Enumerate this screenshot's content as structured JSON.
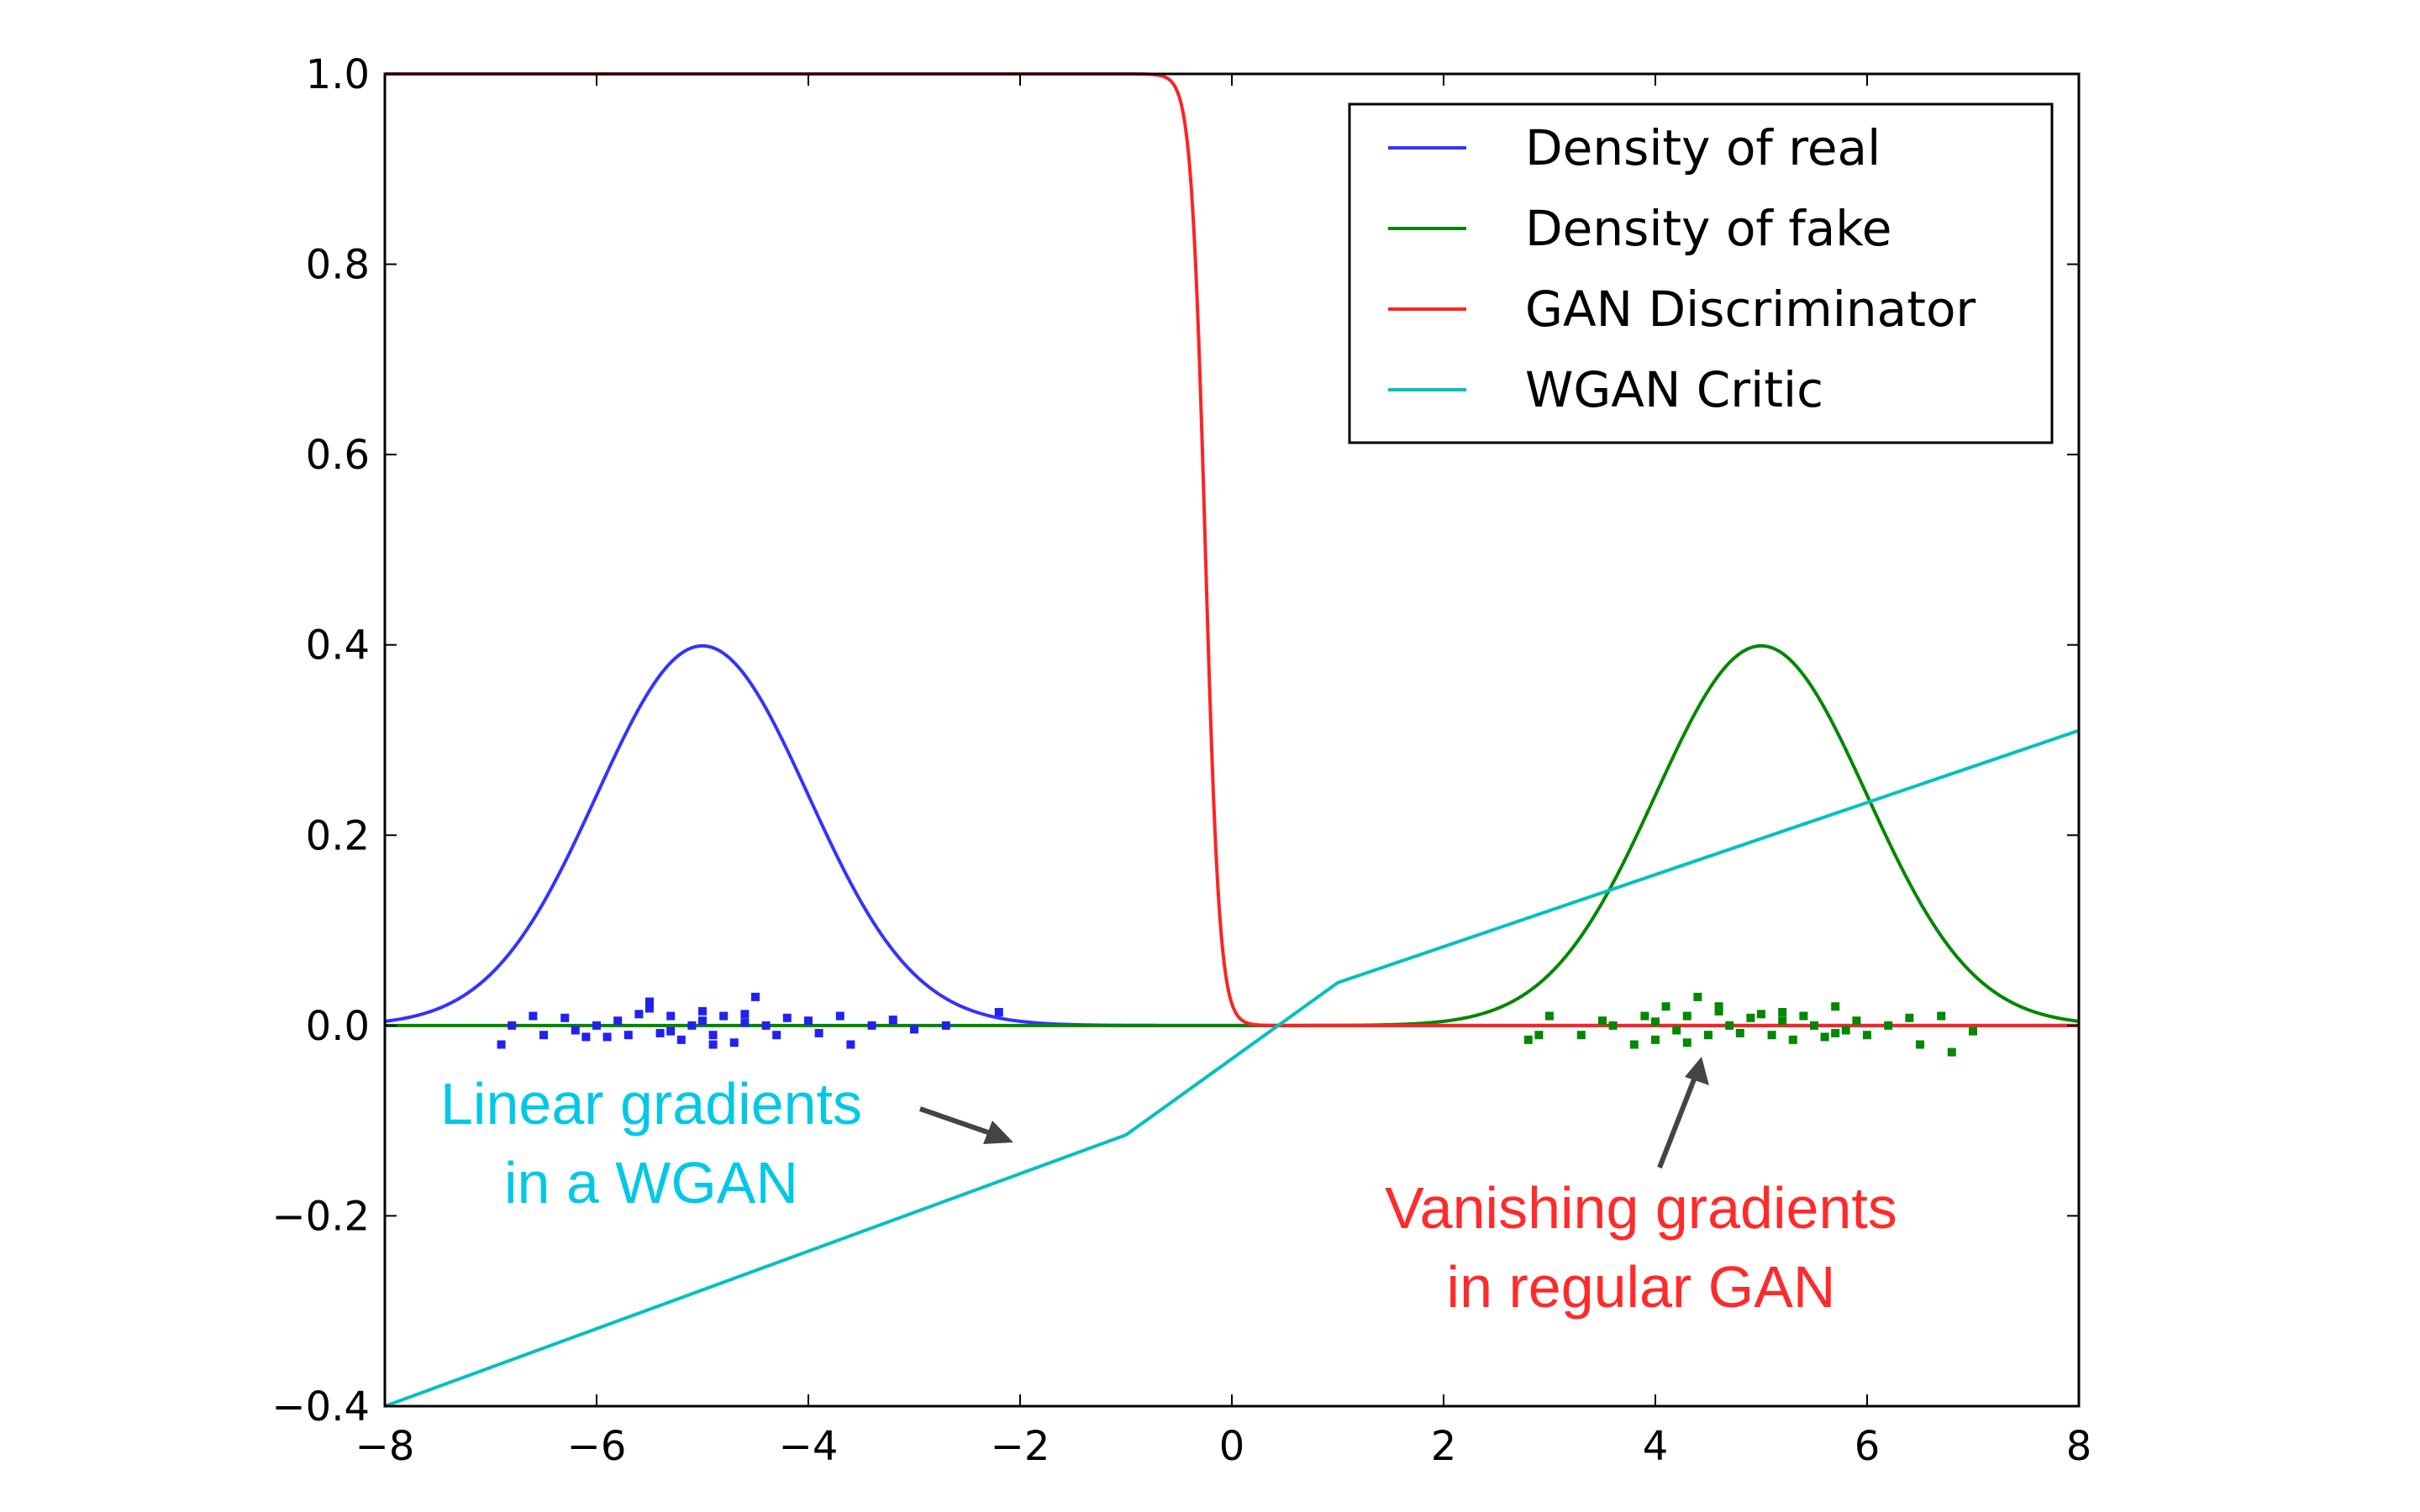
{
  "chart_data": {
    "type": "line",
    "title": "",
    "xlabel": "",
    "ylabel": "",
    "xlim": [
      -8,
      8
    ],
    "ylim": [
      -0.4,
      1.0
    ],
    "xticks": [
      "−8",
      "−6",
      "−4",
      "−2",
      "0",
      "2",
      "4",
      "6",
      "8"
    ],
    "xtick_values": [
      -8,
      -6,
      -4,
      -2,
      0,
      2,
      4,
      6,
      8
    ],
    "yticks": [
      "1.0",
      "0.8",
      "0.6",
      "0.4",
      "0.2",
      "0.0",
      "−0.2",
      "−0.4"
    ],
    "ytick_values": [
      1.0,
      0.8,
      0.6,
      0.4,
      0.2,
      0.0,
      -0.2,
      -0.4
    ],
    "grid": false,
    "legend_position": "top-right",
    "series": [
      {
        "name": "Density of real",
        "color": "#3333ff",
        "kind": "gaussian",
        "mean": -5,
        "std": 1
      },
      {
        "name": "Density of fake",
        "color": "#008800",
        "kind": "gaussian",
        "mean": 5,
        "std": 1
      },
      {
        "name": "GAN Discriminator",
        "color": "#ff2222",
        "kind": "sigmoid",
        "center": -0.25,
        "steepness": -15
      },
      {
        "name": "WGAN Critic",
        "color": "#00c0c0",
        "kind": "piecewise",
        "x": [
          -8,
          -1,
          1,
          8
        ],
        "y": [
          -0.4,
          -0.115,
          0.045,
          0.31
        ]
      }
    ],
    "scatter": [
      {
        "name": "real samples",
        "color": "#2222ee",
        "x": [
          -6.9,
          -6.8,
          -6.6,
          -6.5,
          -6.3,
          -6.2,
          -6.0,
          -5.9,
          -5.8,
          -5.7,
          -5.6,
          -5.5,
          -5.4,
          -5.3,
          -5.2,
          -5.1,
          -5.0,
          -4.9,
          -4.8,
          -4.7,
          -4.6,
          -4.5,
          -4.4,
          -4.3,
          -4.2,
          -4.0,
          -3.9,
          -3.7,
          -3.6,
          -3.4,
          -3.2,
          -3.0,
          -2.7,
          -2.2,
          -5.5,
          -5.3,
          -4.9,
          -4.6,
          -6.1,
          -5.0
        ],
        "y": [
          -0.02,
          0.0,
          0.01,
          -0.01,
          0.008,
          -0.005,
          0.0,
          -0.012,
          0.005,
          -0.01,
          0.012,
          0.025,
          -0.008,
          0.01,
          -0.015,
          0.0,
          0.005,
          -0.01,
          0.01,
          -0.018,
          0.003,
          0.03,
          0.0,
          -0.01,
          0.008,
          0.005,
          -0.008,
          0.01,
          -0.02,
          0.0,
          0.006,
          -0.004,
          0.0,
          0.014,
          0.018,
          -0.006,
          -0.02,
          0.012,
          -0.012,
          0.015
        ]
      },
      {
        "name": "fake samples",
        "color": "#008800",
        "x": [
          2.8,
          2.9,
          3.0,
          3.3,
          3.5,
          3.6,
          3.8,
          3.9,
          4.0,
          4.1,
          4.2,
          4.3,
          4.4,
          4.5,
          4.6,
          4.7,
          4.8,
          4.9,
          5.0,
          5.1,
          5.2,
          5.3,
          5.4,
          5.5,
          5.6,
          5.7,
          5.8,
          5.9,
          6.0,
          6.2,
          6.4,
          6.5,
          6.7,
          6.8,
          7.0,
          4.3,
          4.6,
          5.2,
          5.7,
          4.0
        ],
        "y": [
          -0.015,
          -0.01,
          0.01,
          -0.01,
          0.005,
          0.0,
          -0.02,
          0.01,
          -0.015,
          0.02,
          -0.005,
          0.01,
          0.03,
          -0.01,
          0.015,
          0.0,
          -0.008,
          0.008,
          0.012,
          -0.01,
          0.005,
          -0.015,
          0.01,
          0.0,
          -0.012,
          0.02,
          -0.005,
          0.005,
          -0.01,
          0.0,
          0.008,
          -0.02,
          0.01,
          -0.028,
          -0.006,
          -0.018,
          0.02,
          0.014,
          -0.008,
          0.004
        ]
      }
    ],
    "annotations": [
      {
        "lines": [
          "Linear gradients",
          "in a WGAN"
        ],
        "color": "#00c8e6"
      },
      {
        "lines": [
          "Vanishing gradients",
          "in regular GAN"
        ],
        "color": "#ff2a2a"
      }
    ]
  }
}
